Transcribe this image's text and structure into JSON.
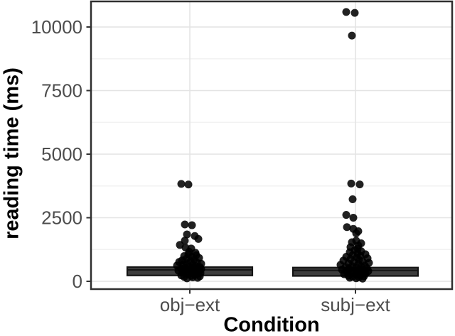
{
  "chart_data": {
    "type": "boxplot",
    "subtype": "boxplot-with-jittered-points",
    "title": "",
    "xlabel": "Condition",
    "ylabel": "reading time (ms)",
    "categories": [
      "obj−ext",
      "subj−ext"
    ],
    "y_ticks": [
      "0",
      "2500",
      "5000",
      "7500",
      "10000"
    ],
    "y_tick_values": [
      0,
      2500,
      5000,
      7500,
      10000
    ],
    "y_minor_values": [
      1250,
      3750,
      6250,
      8750
    ],
    "ylim": [
      -350,
      11050
    ],
    "grid": "major and minor horizontal light-gray gridlines on white; vertical major gridline at each category; black panel border (theme_bw)",
    "legend": "none",
    "boxes": [
      {
        "category": "obj−ext",
        "q1": 230,
        "median": 450,
        "q3": 560
      },
      {
        "category": "subj−ext",
        "q1": 210,
        "median": 430,
        "q3": 540
      }
    ],
    "series": [
      {
        "name": "obj−ext",
        "points_ms_dx": [
          [
            3830,
            -12
          ],
          [
            3805,
            -2
          ],
          [
            2235,
            -7
          ],
          [
            2205,
            3
          ],
          [
            1845,
            -4
          ],
          [
            1780,
            7
          ],
          [
            1665,
            12
          ],
          [
            1600,
            -7
          ],
          [
            1430,
            -14
          ],
          [
            1325,
            -6
          ],
          [
            1290,
            2
          ],
          [
            1160,
            -1
          ],
          [
            1120,
            8
          ],
          [
            1060,
            -2
          ],
          [
            1025,
            9
          ],
          [
            990,
            -8
          ],
          [
            955,
            3
          ],
          [
            920,
            13
          ],
          [
            885,
            -5
          ],
          [
            855,
            6
          ],
          [
            820,
            -11
          ],
          [
            785,
            1
          ],
          [
            760,
            -15
          ],
          [
            735,
            10
          ],
          [
            710,
            -4
          ],
          [
            690,
            16
          ],
          [
            665,
            -9
          ],
          [
            645,
            4
          ],
          [
            620,
            -18
          ],
          [
            600,
            8
          ],
          [
            580,
            -1
          ],
          [
            560,
            14
          ],
          [
            540,
            -7
          ],
          [
            520,
            3
          ],
          [
            500,
            -12
          ],
          [
            480,
            16
          ],
          [
            460,
            -3
          ],
          [
            440,
            9
          ],
          [
            420,
            -16
          ],
          [
            400,
            1
          ],
          [
            385,
            12
          ],
          [
            365,
            -10
          ],
          [
            345,
            5
          ],
          [
            325,
            15
          ],
          [
            310,
            -6
          ],
          [
            295,
            10
          ],
          [
            275,
            -2
          ],
          [
            255,
            7
          ],
          [
            235,
            -12
          ],
          [
            215,
            2
          ],
          [
            195,
            14
          ],
          [
            175,
            -8
          ],
          [
            155,
            4
          ],
          [
            135,
            11
          ],
          [
            115,
            -4
          ]
        ]
      },
      {
        "name": "subj−ext",
        "points_ms_dx": [
          [
            10590,
            -13
          ],
          [
            10555,
            -1
          ],
          [
            9660,
            -5
          ],
          [
            3845,
            -6
          ],
          [
            3810,
            6
          ],
          [
            3225,
            -4
          ],
          [
            2610,
            -13
          ],
          [
            2500,
            -3
          ],
          [
            2130,
            -12
          ],
          [
            2060,
            -3
          ],
          [
            1970,
            4
          ],
          [
            1885,
            1
          ],
          [
            1595,
            1
          ],
          [
            1535,
            -5
          ],
          [
            1495,
            8
          ],
          [
            1405,
            4
          ],
          [
            1345,
            -7
          ],
          [
            1285,
            3
          ],
          [
            1230,
            -1
          ],
          [
            1185,
            8
          ],
          [
            1145,
            -8
          ],
          [
            1105,
            3
          ],
          [
            1065,
            14
          ],
          [
            1030,
            -4
          ],
          [
            1000,
            7
          ],
          [
            965,
            -13
          ],
          [
            935,
            2
          ],
          [
            905,
            17
          ],
          [
            875,
            -7
          ],
          [
            845,
            5
          ],
          [
            815,
            -17
          ],
          [
            785,
            10
          ],
          [
            755,
            -2
          ],
          [
            725,
            19
          ],
          [
            700,
            -10
          ],
          [
            675,
            4
          ],
          [
            650,
            -21
          ],
          [
            625,
            13
          ],
          [
            600,
            -5
          ],
          [
            580,
            8
          ],
          [
            560,
            -14
          ],
          [
            540,
            1
          ],
          [
            520,
            16
          ],
          [
            500,
            -9
          ],
          [
            480,
            6
          ],
          [
            460,
            -19
          ],
          [
            440,
            11
          ],
          [
            420,
            -3
          ],
          [
            400,
            18
          ],
          [
            380,
            -12
          ],
          [
            360,
            3
          ],
          [
            340,
            9
          ],
          [
            320,
            -6
          ],
          [
            300,
            14
          ],
          [
            280,
            -16
          ],
          [
            260,
            2
          ],
          [
            240,
            7
          ],
          [
            220,
            -10
          ],
          [
            200,
            12
          ],
          [
            180,
            -4
          ],
          [
            160,
            5
          ],
          [
            140,
            -8
          ],
          [
            120,
            1
          ],
          [
            105,
            10
          ]
        ]
      }
    ],
    "point_style": {
      "color": "#000000",
      "opacity": 0.87,
      "radius_px": 5.5
    },
    "box_style": {
      "fill": "#3d3d3d",
      "stroke": "#141414"
    },
    "colors": {
      "tick_label": "#4d4d4d",
      "axis_title": "#000000",
      "panel_border": "#2f2f2f",
      "grid_major": "#e4e4e4",
      "grid_minor": "#f2f2f2",
      "tick_mark": "#333333"
    }
  }
}
